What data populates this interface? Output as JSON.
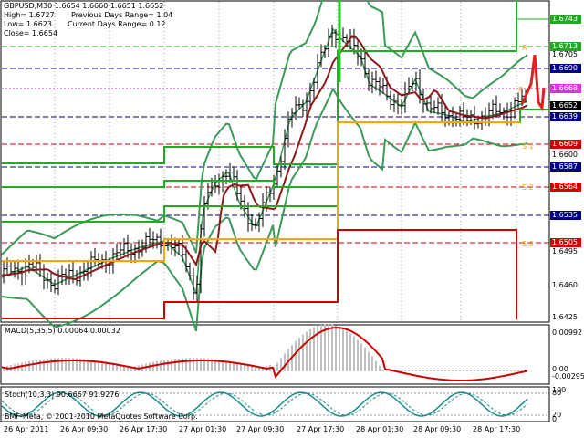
{
  "chart": {
    "symbol_line": "GBPUSD,M30  1.6654 1.6660 1.6651 1.6652",
    "info": {
      "high": "High= 1.6727",
      "prev_range": "Previous Days Range= 1.04",
      "low": "Low= 1.6623",
      "curr_range": "Current Days Range= 0.12",
      "close": "Close= 1.6654"
    },
    "macd_label": "MACD(5,35,5) 0.00064 0.00032",
    "stoch_label": "Stoch(10,3,3) 90.6667 91.9276",
    "copyright": "BMF-Meta, © 2001-2010 MetaQuotes Software Corp.",
    "colors": {
      "green_level": "#22aa22",
      "red_level": "#cc0000",
      "orange_level": "#ffa500",
      "bands": "#3c9a5a",
      "ma": "#8b1a1a",
      "macd_hist": "#c0c0c0",
      "macd_signal": "#cc0000"
    },
    "price_ticks": [
      {
        "text": "1.6743",
        "bg": "#22aa22",
        "fg": "#ffffff"
      },
      {
        "text": "1.6713",
        "bg": "#22aa22",
        "fg": "#ffffff"
      },
      {
        "text": "1.6705",
        "bg": "",
        "fg": "#000000"
      },
      {
        "text": "1.6690",
        "bg": "#000080",
        "fg": "#ffffff"
      },
      {
        "text": "1.6668",
        "bg": "#dd33dd",
        "fg": "#ffffff"
      },
      {
        "text": "1.6652",
        "bg": "#000000",
        "fg": "#ffffff"
      },
      {
        "text": "1.6639",
        "bg": "#000080",
        "fg": "#ffffff"
      },
      {
        "text": "1.6609",
        "bg": "#cc0000",
        "fg": "#ffffff"
      },
      {
        "text": "1.6600",
        "bg": "",
        "fg": "#000000"
      },
      {
        "text": "1.6587",
        "bg": "#000080",
        "fg": "#ffffff"
      },
      {
        "text": "1.6564",
        "bg": "#cc0000",
        "fg": "#ffffff"
      },
      {
        "text": "1.6535",
        "bg": "#000080",
        "fg": "#ffffff"
      },
      {
        "text": "1.6505",
        "bg": "#cc0000",
        "fg": "#ffffff"
      },
      {
        "text": "1.6495",
        "bg": "",
        "fg": "#000000"
      },
      {
        "text": "1.6460",
        "bg": "",
        "fg": "#000000"
      },
      {
        "text": "1.6425",
        "bg": "",
        "fg": "#000000"
      }
    ],
    "level_labels": [
      {
        "text": "S 1",
        "color": "#ffa500"
      },
      {
        "text": "S 2",
        "color": "#ffa500"
      },
      {
        "text": "S 3",
        "color": "#ffa500"
      },
      {
        "text": "R",
        "color": "#ffa500"
      },
      {
        "text": "P",
        "color": "#ffa500"
      }
    ],
    "macd_ticks": [
      "0.00992",
      "0.00",
      "-0.00295"
    ],
    "stoch_ticks": [
      "100",
      "80",
      "20",
      "0"
    ],
    "time_labels": [
      "26 Apr 2011",
      "26 Apr 09:30",
      "26 Apr 17:30",
      "27 Apr 01:30",
      "27 Apr 09:30",
      "27 Apr 17:30",
      "28 Apr 01:30",
      "28 Apr 09:30",
      "28 Apr 17:30"
    ]
  }
}
